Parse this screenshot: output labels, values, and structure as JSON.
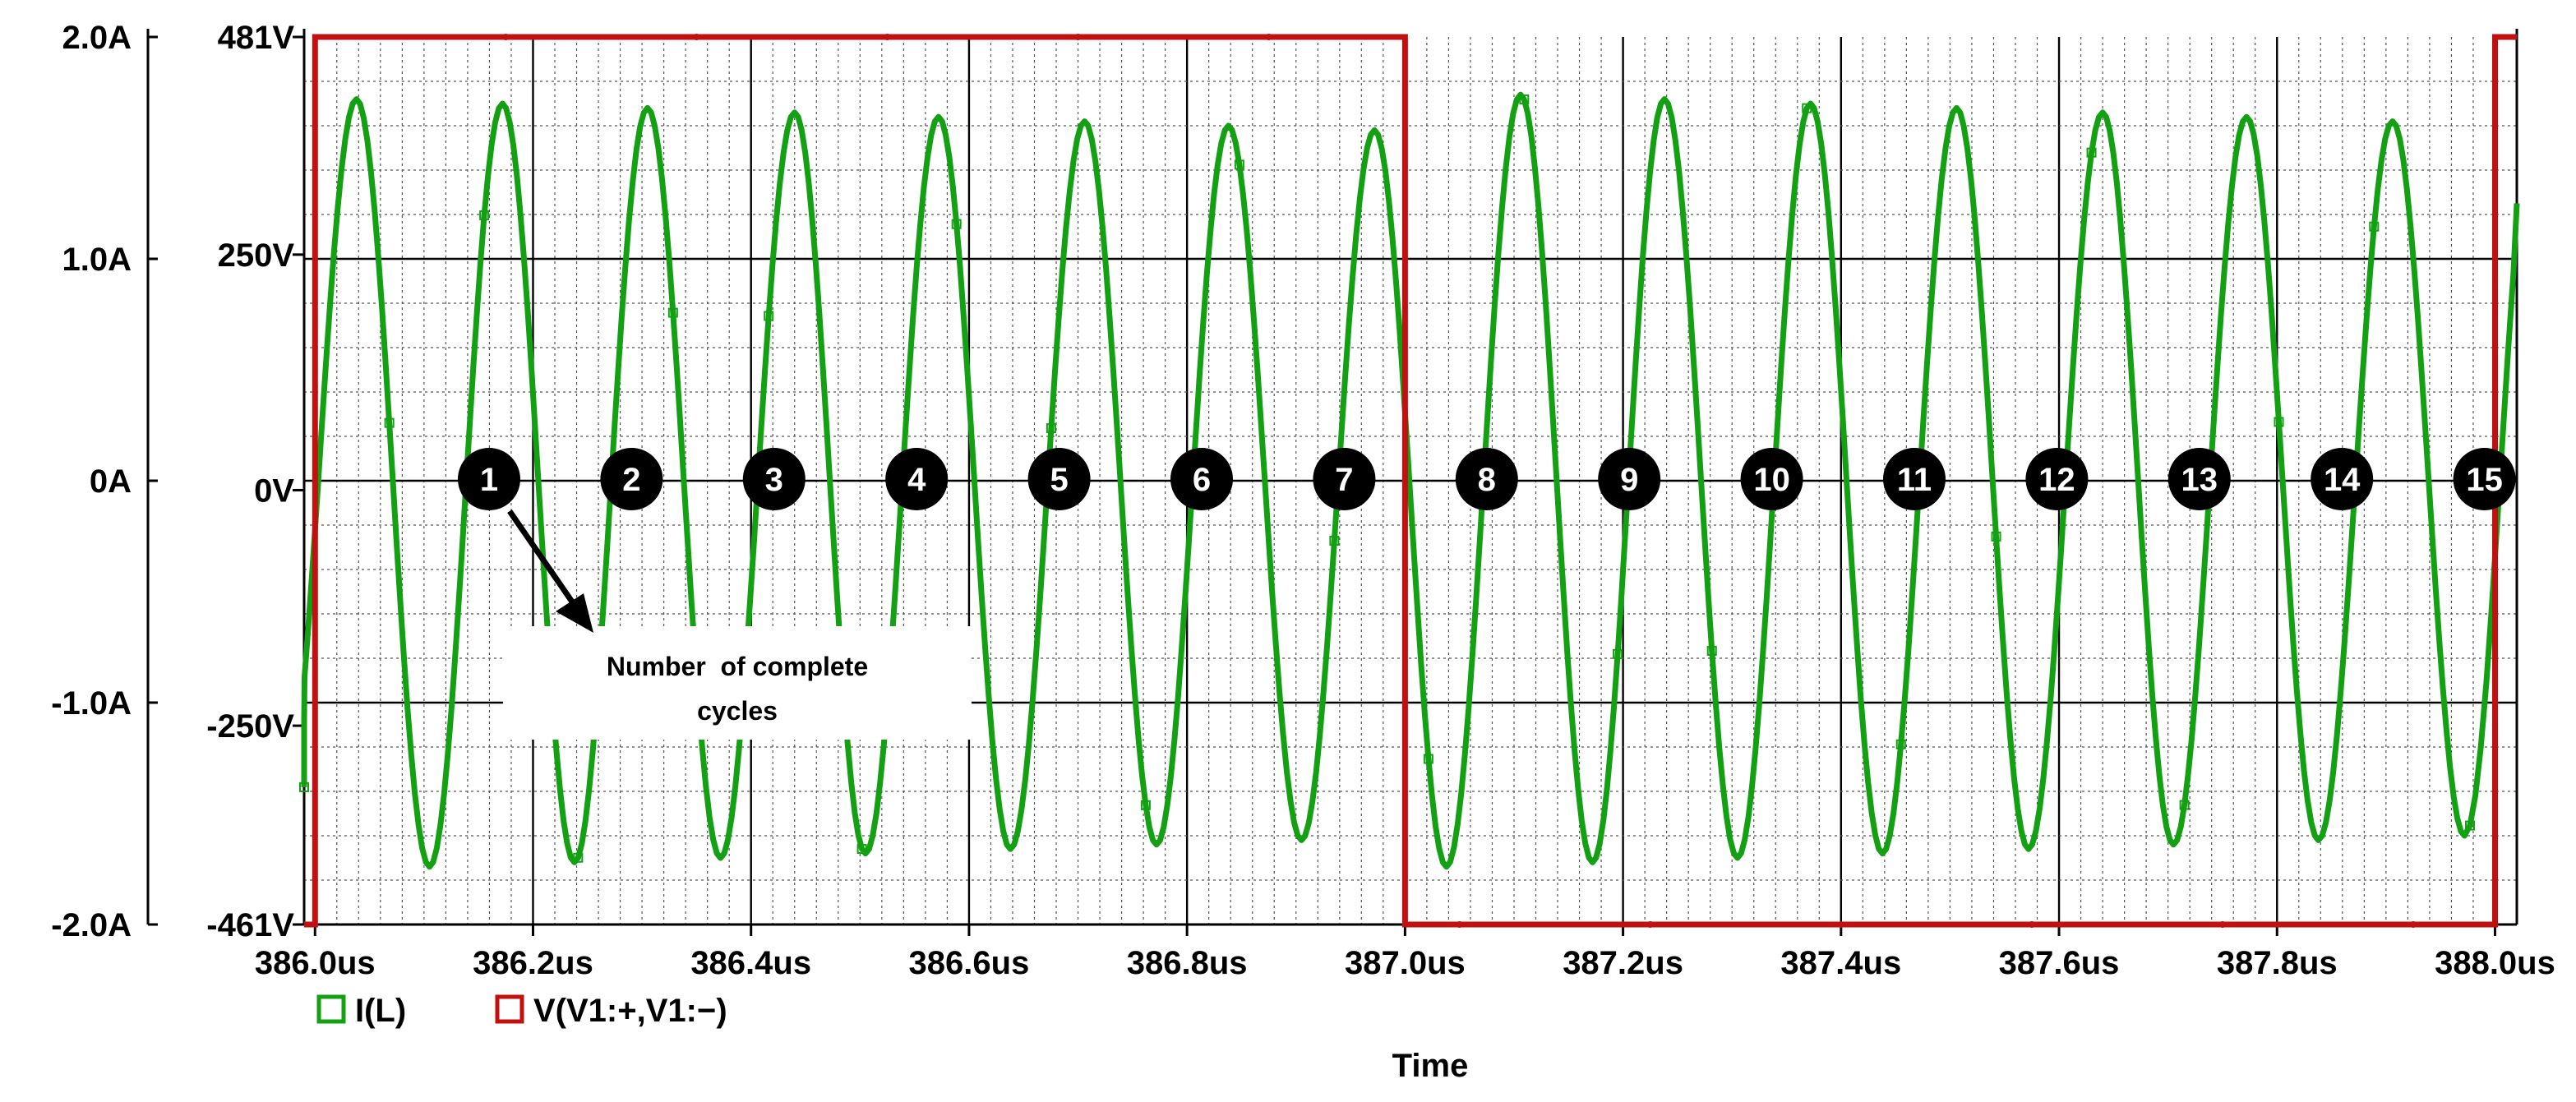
{
  "chart_data": {
    "type": "line",
    "xlabel": "Time",
    "xlim": [
      385.99,
      388.02
    ],
    "x_ticks": [
      "386.0us",
      "386.2us",
      "386.4us",
      "386.6us",
      "386.8us",
      "387.0us",
      "387.2us",
      "387.4us",
      "387.6us",
      "387.8us",
      "388.0us"
    ],
    "x_tick_values": [
      386.0,
      386.2,
      386.4,
      386.6,
      386.8,
      387.0,
      387.2,
      387.4,
      387.6,
      387.8,
      388.0
    ],
    "y_left": {
      "range": [
        -2.0,
        2.0
      ],
      "ticks": [
        "2.0A",
        "1.0A",
        "0A",
        "-1.0A",
        "-2.0A"
      ],
      "tick_values": [
        2.0,
        1.0,
        0,
        -1.0,
        -2.0
      ]
    },
    "y_right": {
      "range": [
        -461,
        481
      ],
      "ticks": [
        "481V",
        "250V",
        "0V",
        "-250V",
        "-461V"
      ],
      "tick_values": [
        481,
        250,
        0,
        -250,
        -461
      ]
    },
    "grid": true,
    "legend_position": "bottom-left",
    "series": [
      {
        "name": "I(L)",
        "color": "#13a013",
        "axis": "left",
        "kind": "damped-sinusoid",
        "frequency_mhz": 7.5,
        "peak_values": [
          {
            "x": 386.038,
            "y": 1.72
          },
          {
            "x": 386.172,
            "y": 1.7
          },
          {
            "x": 386.305,
            "y": 1.68
          },
          {
            "x": 386.44,
            "y": 1.66
          },
          {
            "x": 386.572,
            "y": 1.64
          },
          {
            "x": 386.706,
            "y": 1.62
          },
          {
            "x": 386.838,
            "y": 1.6
          },
          {
            "x": 386.972,
            "y": 1.58
          },
          {
            "x": 387.106,
            "y": 1.74
          },
          {
            "x": 387.238,
            "y": 1.72
          },
          {
            "x": 387.372,
            "y": 1.7
          },
          {
            "x": 387.506,
            "y": 1.68
          },
          {
            "x": 387.64,
            "y": 1.66
          },
          {
            "x": 387.772,
            "y": 1.64
          },
          {
            "x": 387.906,
            "y": 1.62
          }
        ],
        "trough_values": [
          {
            "x": 385.97,
            "y": -1.56
          },
          {
            "x": 386.105,
            "y": -1.74
          },
          {
            "x": 386.238,
            "y": -1.72
          },
          {
            "x": 386.372,
            "y": -1.7
          },
          {
            "x": 386.505,
            "y": -1.68
          },
          {
            "x": 386.638,
            "y": -1.66
          },
          {
            "x": 386.772,
            "y": -1.64
          },
          {
            "x": 386.905,
            "y": -1.62
          },
          {
            "x": 387.038,
            "y": -1.74
          },
          {
            "x": 387.172,
            "y": -1.72
          },
          {
            "x": 387.305,
            "y": -1.7
          },
          {
            "x": 387.438,
            "y": -1.68
          },
          {
            "x": 387.572,
            "y": -1.66
          },
          {
            "x": 387.705,
            "y": -1.64
          },
          {
            "x": 387.838,
            "y": -1.62
          },
          {
            "x": 387.972,
            "y": -1.6
          }
        ],
        "end_value": {
          "x": 388.022,
          "y": 1.25
        }
      },
      {
        "name": "V(V1:+,V1:−)",
        "color": "#c01010",
        "axis": "right",
        "kind": "square-wave",
        "points": [
          {
            "x": 385.99,
            "y": -461
          },
          {
            "x": 386.0,
            "y": -461
          },
          {
            "x": 386.0,
            "y": 481
          },
          {
            "x": 387.0,
            "y": 481
          },
          {
            "x": 387.0,
            "y": -461
          },
          {
            "x": 388.0,
            "y": -461
          },
          {
            "x": 388.0,
            "y": 481
          },
          {
            "x": 388.02,
            "y": 481
          }
        ]
      }
    ],
    "cycle_markers": [
      {
        "label": "1",
        "x": 386.106
      },
      {
        "label": "2",
        "x": 386.216
      },
      {
        "label": "3",
        "x": 386.312
      },
      {
        "label": "4",
        "x": 386.412
      },
      {
        "label": "5",
        "x": 386.51
      },
      {
        "label": "6",
        "x": 386.609
      },
      {
        "label": "7",
        "x": 386.71
      },
      {
        "label": "8",
        "x": 386.809
      },
      {
        "label": "9",
        "x": 386.911
      },
      {
        "label": "10",
        "x": 387.01
      },
      {
        "label": "11",
        "x": 387.11
      },
      {
        "label": "12",
        "x": 387.211
      },
      {
        "label": "13",
        "x": 387.31
      },
      {
        "label": "14",
        "x": 387.41
      },
      {
        "label": "15",
        "x": 387.51
      }
    ],
    "annotation": {
      "lines": [
        "Number  of complete",
        "cycles"
      ]
    }
  }
}
